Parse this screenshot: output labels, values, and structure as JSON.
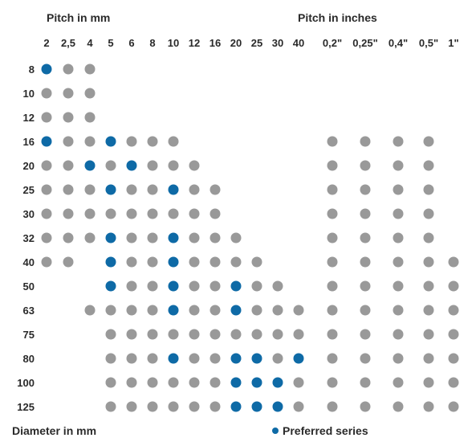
{
  "header_mm": "Pitch in mm",
  "header_inches": "Pitch in inches",
  "footer_left": "Diameter in mm",
  "legend_preferred": "Preferred series",
  "colors": {
    "standard": "#999999",
    "preferred": "#0e6aa6",
    "text": "#2a2a2a"
  },
  "pitch_mm": [
    "2",
    "2,5",
    "4",
    "5",
    "6",
    "8",
    "10",
    "12",
    "16",
    "20",
    "25",
    "30",
    "40"
  ],
  "pitch_inch": [
    "0,2\"",
    "0,25\"",
    "0,4\"",
    "0,5\"",
    "1\""
  ],
  "diameters": [
    {
      "d": "8",
      "mm": [
        2,
        1,
        1,
        0,
        0,
        0,
        0,
        0,
        0,
        0,
        0,
        0,
        0
      ],
      "inch": [
        0,
        0,
        0,
        0,
        0
      ]
    },
    {
      "d": "10",
      "mm": [
        1,
        1,
        1,
        0,
        0,
        0,
        0,
        0,
        0,
        0,
        0,
        0,
        0
      ],
      "inch": [
        0,
        0,
        0,
        0,
        0
      ]
    },
    {
      "d": "12",
      "mm": [
        1,
        1,
        1,
        0,
        0,
        0,
        0,
        0,
        0,
        0,
        0,
        0,
        0
      ],
      "inch": [
        0,
        0,
        0,
        0,
        0
      ]
    },
    {
      "d": "16",
      "mm": [
        2,
        1,
        1,
        2,
        1,
        1,
        1,
        0,
        0,
        0,
        0,
        0,
        0
      ],
      "inch": [
        1,
        1,
        1,
        1,
        0
      ]
    },
    {
      "d": "20",
      "mm": [
        1,
        1,
        2,
        1,
        2,
        1,
        1,
        1,
        0,
        0,
        0,
        0,
        0
      ],
      "inch": [
        1,
        1,
        1,
        1,
        0
      ]
    },
    {
      "d": "25",
      "mm": [
        1,
        1,
        1,
        2,
        1,
        1,
        2,
        1,
        1,
        0,
        0,
        0,
        0
      ],
      "inch": [
        1,
        1,
        1,
        1,
        0
      ]
    },
    {
      "d": "30",
      "mm": [
        1,
        1,
        1,
        1,
        1,
        1,
        1,
        1,
        1,
        0,
        0,
        0,
        0
      ],
      "inch": [
        1,
        1,
        1,
        1,
        0
      ]
    },
    {
      "d": "32",
      "mm": [
        1,
        1,
        1,
        2,
        1,
        1,
        2,
        1,
        1,
        1,
        0,
        0,
        0
      ],
      "inch": [
        1,
        1,
        1,
        1,
        0
      ]
    },
    {
      "d": "40",
      "mm": [
        1,
        1,
        0,
        2,
        1,
        1,
        2,
        1,
        1,
        1,
        1,
        0,
        0
      ],
      "inch": [
        1,
        1,
        1,
        1,
        1
      ]
    },
    {
      "d": "50",
      "mm": [
        0,
        0,
        0,
        2,
        1,
        1,
        2,
        1,
        1,
        2,
        1,
        1,
        0
      ],
      "inch": [
        1,
        1,
        1,
        1,
        1
      ]
    },
    {
      "d": "63",
      "mm": [
        0,
        0,
        1,
        1,
        1,
        1,
        2,
        1,
        1,
        2,
        1,
        1,
        1
      ],
      "inch": [
        1,
        1,
        1,
        1,
        1
      ]
    },
    {
      "d": "75",
      "mm": [
        0,
        0,
        0,
        1,
        1,
        1,
        1,
        1,
        1,
        1,
        1,
        1,
        1
      ],
      "inch": [
        1,
        1,
        1,
        1,
        1
      ]
    },
    {
      "d": "80",
      "mm": [
        0,
        0,
        0,
        1,
        1,
        1,
        2,
        1,
        1,
        2,
        2,
        1,
        2
      ],
      "inch": [
        1,
        1,
        1,
        1,
        1
      ]
    },
    {
      "d": "100",
      "mm": [
        0,
        0,
        0,
        1,
        1,
        1,
        1,
        1,
        1,
        2,
        2,
        2,
        1
      ],
      "inch": [
        1,
        1,
        1,
        1,
        1
      ]
    },
    {
      "d": "125",
      "mm": [
        0,
        0,
        0,
        1,
        1,
        1,
        1,
        1,
        1,
        2,
        2,
        2,
        1
      ],
      "inch": [
        1,
        1,
        1,
        1,
        1
      ]
    }
  ]
}
